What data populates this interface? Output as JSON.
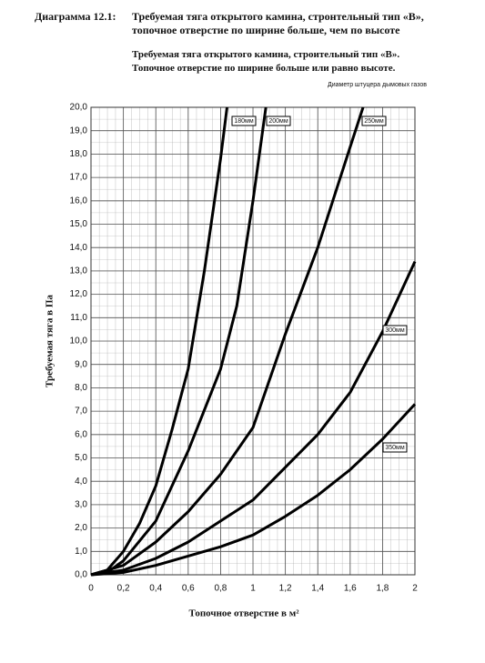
{
  "header": {
    "label": "Диаграмма 12.1:",
    "title_lines": [
      "Требуемая тяга открытого камина, стронтельный тип «В»,",
      "топочное отверстие по ширине больше, чем по высоте"
    ]
  },
  "chart_data": {
    "type": "line",
    "subtitle_lines": [
      "Требуемая тяга открытого камина, строительный тип «В».",
      "Топочное отверстие по ширине больше или равно высоте."
    ],
    "legend_title": "Диаметр штуцера дымовых газов",
    "xlabel": "Топочное отверстие в м²",
    "ylabel": "Требуемая тяга в Па",
    "xlim": [
      0,
      2
    ],
    "ylim": [
      0,
      20
    ],
    "xticks": [
      0,
      {
        "value": 0.2,
        "label": "0,2"
      },
      {
        "value": 0.4,
        "label": "0,4"
      },
      {
        "value": 0.6,
        "label": "0,6"
      },
      {
        "value": 0.8,
        "label": "0,8"
      },
      1,
      {
        "value": 1.2,
        "label": "1,2"
      },
      {
        "value": 1.4,
        "label": "1,4"
      },
      {
        "value": 1.6,
        "label": "1,6"
      },
      {
        "value": 1.8,
        "label": "1,8"
      },
      2
    ],
    "yticks": [
      {
        "value": 0,
        "label": "0,0"
      },
      {
        "value": 1,
        "label": "1,0"
      },
      {
        "value": 2,
        "label": "2,0"
      },
      {
        "value": 3,
        "label": "3,0"
      },
      {
        "value": 4,
        "label": "4,0"
      },
      {
        "value": 5,
        "label": "5,0"
      },
      {
        "value": 6,
        "label": "6,0"
      },
      {
        "value": 7,
        "label": "7,0"
      },
      {
        "value": 8,
        "label": "8,0"
      },
      {
        "value": 9,
        "label": "9,0"
      },
      {
        "value": 10,
        "label": "10,0"
      },
      {
        "value": 11,
        "label": "11,0"
      },
      {
        "value": 12,
        "label": "12,0"
      },
      {
        "value": 13,
        "label": "13,0"
      },
      {
        "value": 14,
        "label": "14,0"
      },
      {
        "value": 15,
        "label": "15,0"
      },
      {
        "value": 16,
        "label": "16,0"
      },
      {
        "value": 17,
        "label": "17,0"
      },
      {
        "value": 18,
        "label": "18,0"
      },
      {
        "value": 19,
        "label": "19,0"
      },
      {
        "value": 20,
        "label": "20,0"
      }
    ],
    "grid": true,
    "series": [
      {
        "name": "180мм",
        "color": "#000000",
        "x": [
          0,
          0.1,
          0.2,
          0.3,
          0.4,
          0.5,
          0.6,
          0.7,
          0.8,
          0.84
        ],
        "values": [
          0,
          0.2,
          1.0,
          2.2,
          3.8,
          6.2,
          8.8,
          13,
          17.8,
          20
        ]
      },
      {
        "name": "200мм",
        "color": "#000000",
        "x": [
          0,
          0.1,
          0.2,
          0.4,
          0.6,
          0.8,
          0.9,
          1.0,
          1.08
        ],
        "values": [
          0,
          0.1,
          0.6,
          2.3,
          5.3,
          8.8,
          11.5,
          16,
          20
        ]
      },
      {
        "name": "250мм",
        "color": "#000000",
        "x": [
          0,
          0.2,
          0.4,
          0.6,
          0.8,
          1.0,
          1.2,
          1.4,
          1.6,
          1.68
        ],
        "values": [
          0,
          0.4,
          1.4,
          2.7,
          4.3,
          6.3,
          10.3,
          14,
          18.3,
          20
        ]
      },
      {
        "name": "300мм",
        "color": "#000000",
        "x": [
          0,
          0.2,
          0.4,
          0.6,
          0.8,
          1.0,
          1.2,
          1.4,
          1.6,
          1.8,
          2.0
        ],
        "values": [
          0,
          0.2,
          0.7,
          1.4,
          2.3,
          3.2,
          4.6,
          6.0,
          7.8,
          10.4,
          13.4
        ]
      },
      {
        "name": "350мм",
        "color": "#000000",
        "x": [
          0,
          0.2,
          0.4,
          0.6,
          0.8,
          1.0,
          1.2,
          1.4,
          1.6,
          1.8,
          2.0
        ],
        "values": [
          0,
          0.1,
          0.4,
          0.8,
          1.2,
          1.7,
          2.5,
          3.4,
          4.5,
          5.8,
          7.3
        ]
      }
    ]
  }
}
